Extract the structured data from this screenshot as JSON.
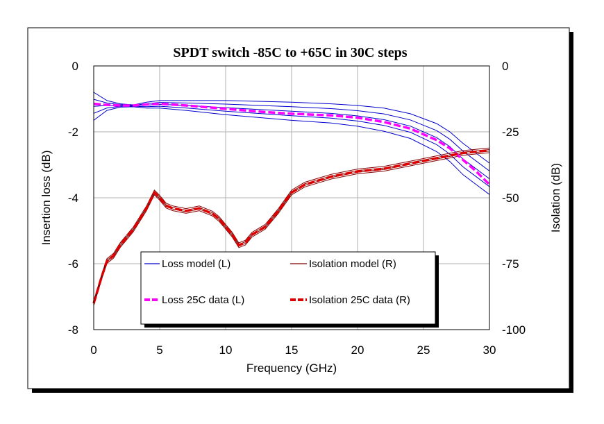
{
  "chart_data": {
    "type": "line",
    "title": "SPDT switch -85C to +65C in 30C steps",
    "xlabel": "Frequency (GHz)",
    "ylabel_left": "Insertion loss (dB)",
    "ylabel_right": "Isolation (dB)",
    "xlim": [
      0,
      30
    ],
    "ylim_left": [
      -8,
      0
    ],
    "ylim_right": [
      -100,
      0
    ],
    "x_ticks": [
      "0",
      "5",
      "10",
      "15",
      "20",
      "25",
      "30"
    ],
    "y_left_ticks": [
      "0",
      "-2",
      "-4",
      "-6",
      "-8"
    ],
    "y_right_ticks": [
      "0",
      "-25",
      "-50",
      "-75",
      "-100"
    ],
    "grid": true,
    "legend_position": "bottom-center",
    "series": [
      {
        "name": "Loss 25C data (L)",
        "axis": "left",
        "style": "dashed",
        "color": "#ff00ff",
        "x": [
          0,
          1,
          2,
          3,
          4,
          5,
          7,
          10,
          13,
          15,
          18,
          20,
          22,
          24,
          26,
          27,
          28,
          29,
          30
        ],
        "y": [
          -1.15,
          -1.18,
          -1.2,
          -1.2,
          -1.17,
          -1.15,
          -1.2,
          -1.3,
          -1.4,
          -1.45,
          -1.5,
          -1.57,
          -1.7,
          -1.9,
          -2.25,
          -2.5,
          -2.85,
          -3.2,
          -3.6
        ]
      },
      {
        "name": "Loss model (L)",
        "axis": "left",
        "style": "solid-band",
        "color": "#0000cc",
        "x": [
          0,
          1,
          2,
          3,
          4,
          5,
          7,
          10,
          13,
          15,
          18,
          20,
          22,
          24,
          26,
          27,
          28,
          29,
          30
        ],
        "y_high": [
          -0.8,
          -1.05,
          -1.15,
          -1.18,
          -1.1,
          -1.05,
          -1.05,
          -1.05,
          -1.08,
          -1.1,
          -1.15,
          -1.2,
          -1.28,
          -1.45,
          -1.75,
          -2.0,
          -2.35,
          -2.65,
          -2.95
        ],
        "y_low": [
          -1.65,
          -1.35,
          -1.25,
          -1.24,
          -1.28,
          -1.28,
          -1.35,
          -1.48,
          -1.58,
          -1.65,
          -1.73,
          -1.83,
          -1.98,
          -2.2,
          -2.6,
          -2.9,
          -3.3,
          -3.6,
          -3.9
        ]
      },
      {
        "name": "Isolation 25C data (R)",
        "axis": "right",
        "style": "dashed",
        "color": "#dd0000",
        "x": [
          0,
          0.3,
          0.6,
          1,
          1.5,
          2,
          2.5,
          3,
          3.5,
          4,
          4.3,
          4.6,
          5,
          5.5,
          6,
          7,
          8,
          9,
          9.5,
          10,
          10.5,
          11,
          11.5,
          12,
          13,
          14,
          15,
          16,
          17,
          18,
          20,
          22,
          24,
          26,
          28,
          30
        ],
        "y": [
          -90,
          -85,
          -80,
          -74,
          -72,
          -68,
          -65,
          -62,
          -58,
          -54,
          -51,
          -48,
          -50,
          -53,
          -54,
          -55,
          -54,
          -56,
          -58,
          -61,
          -64,
          -68,
          -67,
          -64,
          -61,
          -55,
          -48,
          -45,
          -43.5,
          -42,
          -40,
          -39,
          -37,
          -35,
          -33,
          -32
        ]
      },
      {
        "name": "Isolation model (R)",
        "axis": "right",
        "style": "solid-band",
        "color": "#800000",
        "x": [
          0,
          0.3,
          0.6,
          1,
          1.5,
          2,
          2.5,
          3,
          3.5,
          4,
          4.3,
          4.6,
          5,
          5.5,
          6,
          7,
          8,
          9,
          9.5,
          10,
          10.5,
          11,
          11.5,
          12,
          13,
          14,
          15,
          16,
          17,
          18,
          20,
          22,
          24,
          26,
          28,
          30
        ],
        "y": [
          -90,
          -85,
          -80,
          -74,
          -72,
          -68,
          -65,
          -62,
          -58,
          -54,
          -51,
          -48,
          -50,
          -53,
          -54,
          -55,
          -54,
          -56,
          -58,
          -61,
          -64,
          -68,
          -67,
          -64,
          -61,
          -55,
          -48,
          -45,
          -43.5,
          -42,
          -40,
          -39,
          -37,
          -35,
          -33,
          -32
        ]
      }
    ],
    "legend": [
      {
        "label": "Loss model (L)",
        "color": "#0000cc",
        "style": "solid"
      },
      {
        "label": "Isolation model (R)",
        "color": "#800000",
        "style": "solid"
      },
      {
        "label": "Loss 25C data (L)",
        "color": "#ff00ff",
        "style": "dashed"
      },
      {
        "label": "Isolation 25C data (R)",
        "color": "#dd0000",
        "style": "dashed"
      }
    ]
  }
}
